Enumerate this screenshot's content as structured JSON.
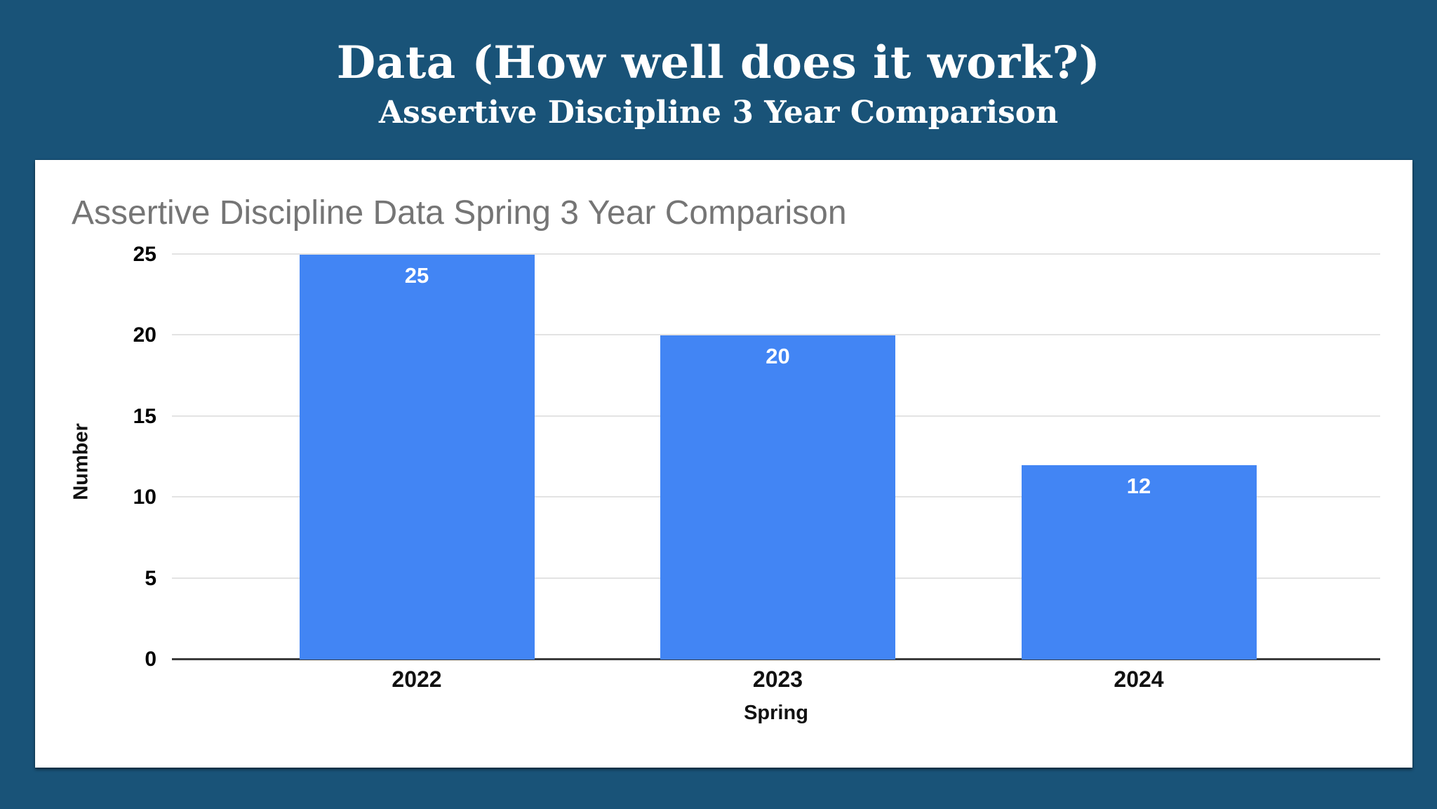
{
  "slide": {
    "title": "Data (How well does it work?)",
    "subtitle": "Assertive Discipline 3 Year Comparison",
    "background_color": "#195378",
    "title_color": "#ffffff"
  },
  "chart_data": {
    "type": "bar",
    "title": "Assertive Discipline Data Spring 3 Year Comparison",
    "title_color": "#757575",
    "categories": [
      "2022",
      "2023",
      "2024"
    ],
    "values": [
      25,
      20,
      12
    ],
    "series": [
      {
        "name": "Number",
        "values": [
          25,
          20,
          12
        ]
      }
    ],
    "xlabel": "Spring",
    "ylabel": "Number",
    "ylim": [
      0,
      25
    ],
    "yticks": [
      0,
      5,
      10,
      15,
      20,
      25
    ],
    "grid": true,
    "legend": "none",
    "bar_color": "#4285f4",
    "bar_label_color": "#ffffff",
    "gridline_color": "#e3e3e3",
    "axis_line_color": "#3c3c3c",
    "tick_label_color": "#000000"
  }
}
